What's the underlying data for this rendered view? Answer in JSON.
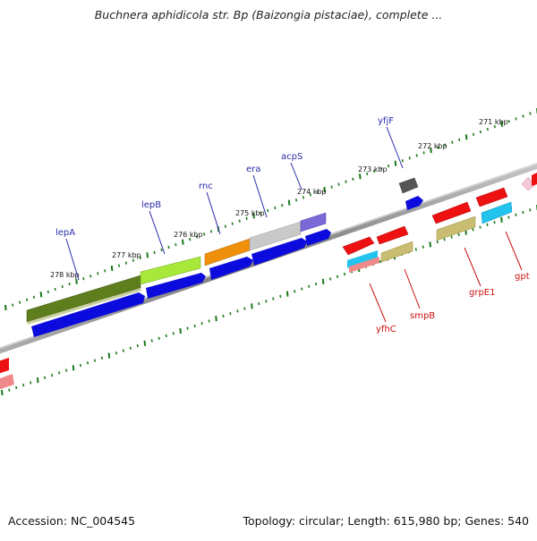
{
  "title": "Buchnera aphidicola str. Bp (Baizongia pistaciae), complete ...",
  "accession": "Accession: NC_004545",
  "summary": "Topology: circular; Length: 615,980 bp; Genes: 540",
  "ruler_labels": [
    "278 kbp",
    "277 kbp",
    "276 kbp",
    "275 kbp",
    "274 kbp",
    "273 kbp",
    "272 kbp",
    "271 kbp"
  ],
  "gene_labels_top": [
    "lepA",
    "lepB",
    "rnc",
    "era",
    "acpS",
    "yfjF"
  ],
  "gene_labels_bottom": [
    "yfhC",
    "smpB",
    "grpE1",
    "gpt"
  ],
  "colors": {
    "tick": "#1a7a1a",
    "label_top": "#2a2aaa",
    "label_bottom": "#cc1111",
    "backbone": "#8a8a8a",
    "blue": "#0b0bdd",
    "red": "#ee1111"
  }
}
